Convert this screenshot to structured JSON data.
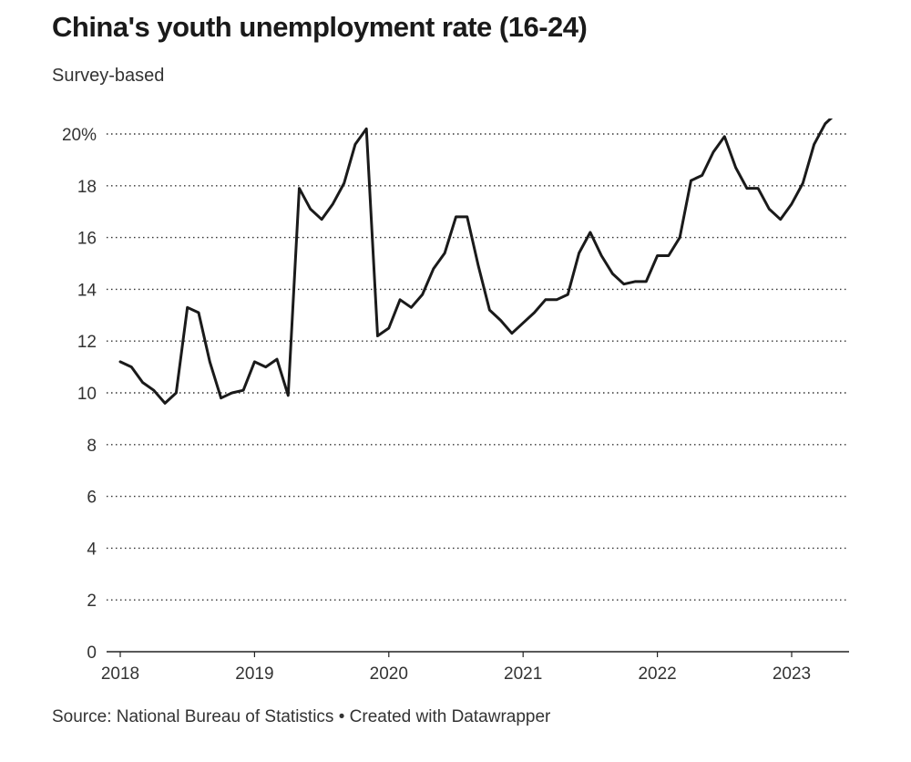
{
  "title": "China's youth unemployment rate (16-24)",
  "subtitle": "Survey-based",
  "source": "Source: National Bureau of Statistics • Created with Datawrapper",
  "colors": {
    "line": "#1a1a1a",
    "grid": "#333333",
    "axis": "#222222"
  },
  "chart_data": {
    "type": "line",
    "title": "China's youth unemployment rate (16-24)",
    "subtitle": "Survey-based",
    "ylim": [
      0,
      20.5
    ],
    "yticks": [
      0,
      2,
      4,
      6,
      8,
      10,
      12,
      14,
      16,
      18,
      20
    ],
    "ytick_labels": [
      "0",
      "2",
      "4",
      "6",
      "8",
      "10",
      "12",
      "14",
      "16",
      "18",
      "20%"
    ],
    "xticks": [
      2018,
      2019,
      2020,
      2021,
      2022,
      2023
    ],
    "xtick_labels": [
      "2018",
      "2019",
      "2020",
      "2021",
      "2022",
      "2023"
    ],
    "grid": "horizontal dotted",
    "series": [
      {
        "x": [
          "2018-01",
          "2018-02",
          "2018-03",
          "2018-04",
          "2018-05",
          "2018-06",
          "2018-07",
          "2018-08",
          "2018-09",
          "2018-10",
          "2018-11",
          "2018-12",
          "2019-01",
          "2019-02",
          "2019-03",
          "2019-04",
          "2019-05",
          "2019-06",
          "2019-07",
          "2019-08",
          "2019-09",
          "2019-10",
          "2019-11",
          "2019-12",
          "2020-01",
          "2020-02",
          "2020-03",
          "2020-04",
          "2020-05",
          "2020-06",
          "2020-07",
          "2020-08",
          "2020-09",
          "2020-10",
          "2020-11",
          "2020-12",
          "2021-01",
          "2021-02",
          "2021-03",
          "2021-04",
          "2021-05",
          "2021-06",
          "2021-07",
          "2021-08",
          "2021-09",
          "2021-10",
          "2021-11",
          "2021-12",
          "2022-01",
          "2022-02",
          "2022-03",
          "2022-04",
          "2022-05",
          "2022-06",
          "2022-07",
          "2022-08",
          "2022-09",
          "2022-10",
          "2022-11",
          "2022-12",
          "2023-01",
          "2023-02",
          "2023-03",
          "2023-04",
          "2023-05"
        ],
        "values": [
          11.2,
          11.0,
          10.4,
          10.1,
          9.6,
          10.0,
          13.3,
          13.1,
          11.2,
          9.8,
          10.0,
          10.1,
          11.2,
          11.0,
          11.3,
          9.9,
          17.9,
          17.1,
          16.7,
          17.3,
          18.1,
          19.6,
          20.2,
          12.2,
          12.5,
          13.6,
          13.3,
          13.8,
          14.8,
          15.4,
          16.8,
          16.8,
          14.9,
          13.2,
          12.8,
          12.3,
          12.7,
          13.1,
          13.6,
          13.6,
          13.8,
          15.4,
          16.2,
          15.3,
          14.6,
          14.2,
          14.3,
          14.3,
          15.3,
          15.3,
          16.0,
          18.2,
          18.4,
          19.3,
          19.9,
          18.7,
          17.9,
          17.9,
          17.1,
          16.7,
          17.3,
          18.1,
          19.6,
          20.4,
          20.8
        ]
      }
    ]
  }
}
